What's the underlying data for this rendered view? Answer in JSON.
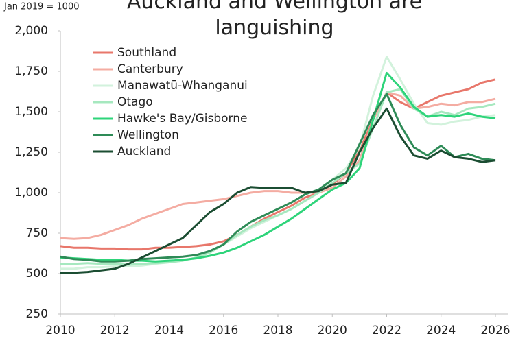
{
  "chart_data": {
    "type": "line",
    "title": "Auckland and Wellington are languishing",
    "y_label": "Jan 2019 = 1000",
    "x": [
      2010,
      2010.5,
      2011,
      2011.5,
      2012,
      2012.5,
      2013,
      2013.5,
      2014,
      2014.5,
      2015,
      2015.5,
      2016,
      2016.5,
      2017,
      2017.5,
      2018,
      2018.5,
      2019,
      2019.5,
      2020,
      2020.5,
      2021,
      2021.5,
      2022,
      2022.5,
      2023,
      2023.5,
      2024,
      2024.5,
      2025,
      2025.5,
      2026
    ],
    "xlim": [
      2010,
      2026
    ],
    "xticks": [
      2010,
      2012,
      2014,
      2016,
      2018,
      2020,
      2022,
      2024,
      2026
    ],
    "ylim": [
      250,
      2000
    ],
    "yticks": [
      250,
      500,
      750,
      {
        "value": 1000,
        "label": "1,000"
      },
      {
        "value": 1250,
        "label": "1,250"
      },
      {
        "value": 1500,
        "label": "1,500"
      },
      {
        "value": 1750,
        "label": "1,750"
      },
      {
        "value": 2000,
        "label": "2,000"
      }
    ],
    "legend": "upper left",
    "series": [
      {
        "name": "Southland",
        "color": "#e8776b",
        "values": [
          670,
          660,
          660,
          655,
          655,
          650,
          650,
          660,
          660,
          665,
          670,
          680,
          700,
          740,
          790,
          840,
          880,
          920,
          970,
          1000,
          1050,
          1120,
          1260,
          1450,
          1620,
          1560,
          1520,
          1560,
          1600,
          1620,
          1640,
          1680,
          1700
        ]
      },
      {
        "name": "Canterbury",
        "color": "#f4aca2",
        "values": [
          720,
          715,
          720,
          740,
          770,
          800,
          840,
          870,
          900,
          930,
          940,
          950,
          960,
          980,
          1000,
          1010,
          1010,
          1000,
          1000,
          1000,
          1030,
          1100,
          1200,
          1450,
          1620,
          1600,
          1520,
          1530,
          1550,
          1540,
          1560,
          1560,
          1580
        ]
      },
      {
        "name": "Manawatū-Whanganui",
        "color": "#d2f2dc",
        "values": [
          530,
          530,
          540,
          540,
          545,
          545,
          550,
          560,
          570,
          580,
          600,
          630,
          680,
          730,
          780,
          820,
          860,
          900,
          950,
          1000,
          1080,
          1150,
          1280,
          1600,
          1840,
          1700,
          1550,
          1430,
          1420,
          1440,
          1450,
          1470,
          1480
        ]
      },
      {
        "name": "Otago",
        "color": "#a6e8bf",
        "values": [
          560,
          560,
          565,
          560,
          560,
          555,
          560,
          565,
          570,
          580,
          600,
          630,
          680,
          740,
          790,
          830,
          860,
          900,
          950,
          1000,
          1060,
          1120,
          1180,
          1400,
          1620,
          1640,
          1520,
          1470,
          1500,
          1480,
          1520,
          1530,
          1550
        ]
      },
      {
        "name": "Hawke's Bay/Gisborne",
        "color": "#2ed47a",
        "values": [
          600,
          595,
          590,
          585,
          585,
          580,
          580,
          575,
          580,
          585,
          595,
          610,
          630,
          660,
          700,
          740,
          790,
          840,
          900,
          960,
          1020,
          1060,
          1150,
          1450,
          1740,
          1650,
          1530,
          1470,
          1480,
          1470,
          1490,
          1470,
          1460
        ]
      },
      {
        "name": "Wellington",
        "color": "#2e8b57",
        "values": [
          605,
          590,
          585,
          575,
          575,
          580,
          590,
          595,
          600,
          605,
          615,
          640,
          680,
          760,
          820,
          860,
          900,
          940,
          990,
          1020,
          1080,
          1120,
          1300,
          1480,
          1610,
          1420,
          1280,
          1230,
          1290,
          1220,
          1240,
          1210,
          1200
        ]
      },
      {
        "name": "Auckland",
        "color": "#1b4d32",
        "values": [
          505,
          505,
          510,
          520,
          530,
          560,
          600,
          640,
          680,
          720,
          800,
          880,
          930,
          1000,
          1035,
          1030,
          1030,
          1030,
          1000,
          1010,
          1050,
          1060,
          1250,
          1400,
          1520,
          1350,
          1230,
          1210,
          1260,
          1220,
          1210,
          1190,
          1200
        ]
      }
    ]
  }
}
